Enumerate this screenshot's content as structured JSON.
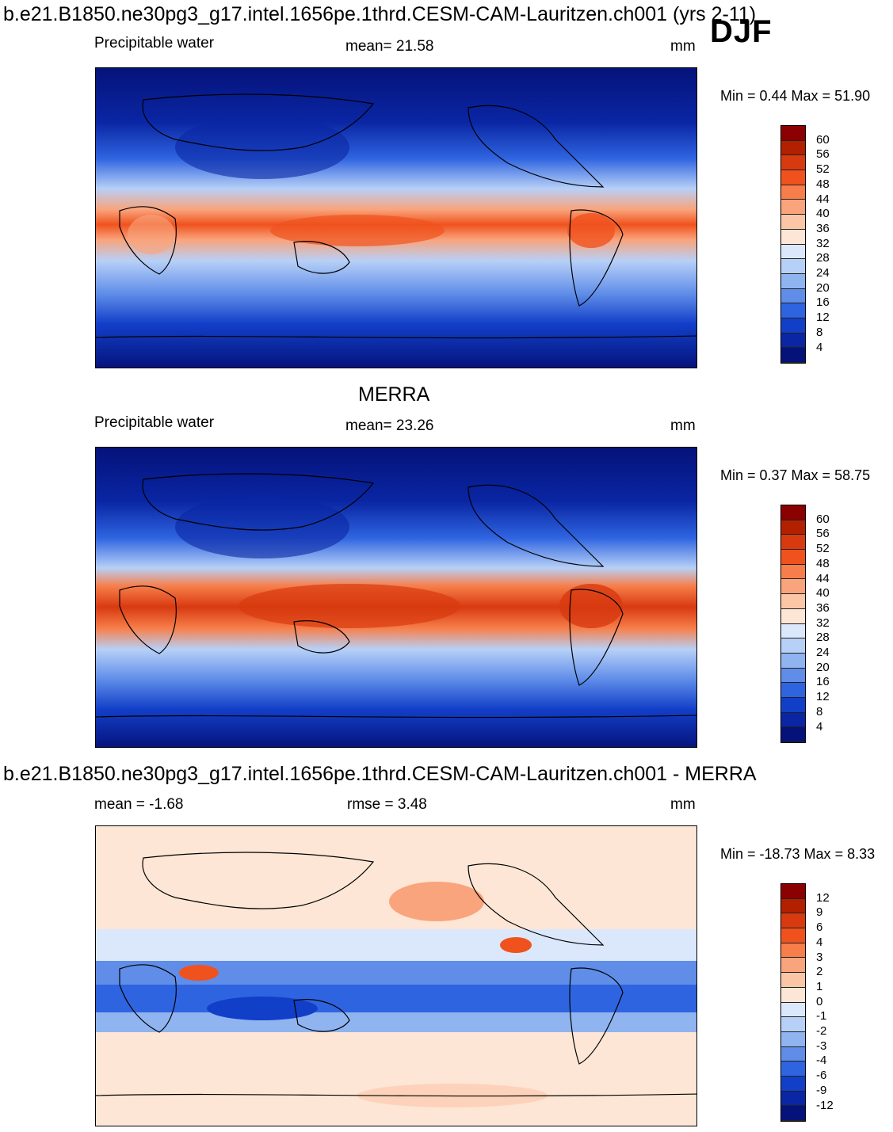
{
  "header": {
    "model_title": "b.e21.B1850.ne30pg3_g17.intel.1656pe.1thrd.CESM-CAM-Lauritzen.ch001 (yrs 2-11)",
    "season": "DJF"
  },
  "panel1": {
    "variable": "Precipitable water",
    "mean_label": "mean=  21.58",
    "units": "mm",
    "minmax": "Min =    0.44 Max =  51.90"
  },
  "panel2": {
    "title": "MERRA",
    "variable": "Precipitable water",
    "mean_label": "mean=  23.26",
    "units": "mm",
    "minmax": "Min =    0.37 Max =  58.75"
  },
  "panel3": {
    "title": "b.e21.B1850.ne30pg3_g17.intel.1656pe.1thrd.CESM-CAM-Lauritzen.ch001 - MERRA",
    "mean_label": "mean =   -1.68",
    "rmse_label": "rmse =     3.48",
    "units": "mm",
    "minmax": "Min = -18.73 Max =     8.33"
  },
  "colorbar_abs": {
    "levels": [
      "60",
      "56",
      "52",
      "48",
      "44",
      "40",
      "36",
      "32",
      "28",
      "24",
      "20",
      "16",
      "12",
      "8",
      "4"
    ],
    "colors": [
      "#8b0000",
      "#b22000",
      "#d83a10",
      "#f0521e",
      "#f77e4a",
      "#f9a47c",
      "#fbc6a6",
      "#fde6d6",
      "#dbe8fb",
      "#b7d0f7",
      "#8fb4f0",
      "#5f8de8",
      "#2f64e0",
      "#123fc8",
      "#0a26a4",
      "#05127a"
    ]
  },
  "colorbar_diff": {
    "levels": [
      "12",
      "9",
      "6",
      "4",
      "3",
      "2",
      "1",
      "0",
      "-1",
      "-2",
      "-3",
      "-4",
      "-6",
      "-9",
      "-12"
    ],
    "colors": [
      "#8b0000",
      "#b22000",
      "#d83a10",
      "#f0521e",
      "#f77e4a",
      "#f9a47c",
      "#fbc6a6",
      "#fde6d6",
      "#dbe8fb",
      "#b7d0f7",
      "#8fb4f0",
      "#5f8de8",
      "#2f64e0",
      "#123fc8",
      "#0a26a4",
      "#05127a"
    ]
  }
}
